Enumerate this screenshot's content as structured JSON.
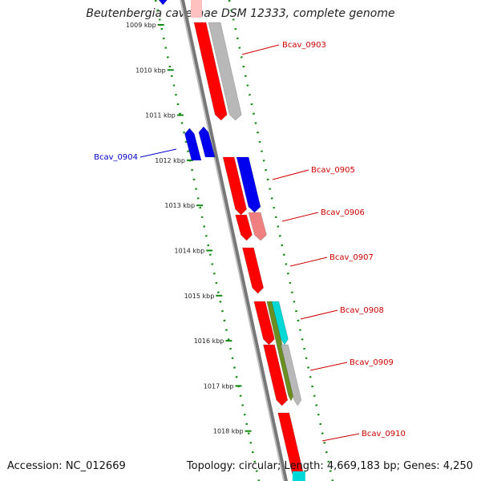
{
  "title": "Beutenbergia cavernae DSM 12333, complete genome",
  "accession": "Accession: NC_012669",
  "stats": "Topology: circular; Length: 4,669,183 bp; Genes: 4,250",
  "colors": {
    "dots": "#118811",
    "backbone": "#777777",
    "red": "#ff0000",
    "blue": "#0000ee",
    "pink": "#f08080",
    "gray": "#b8b8b8",
    "cyan": "#00d8d8",
    "olive": "#6b8e23",
    "label_red": "#cc0000",
    "label_blue": "#0000cc"
  },
  "ticks": [
    "1009 kbp",
    "1010 kbp",
    "1011 kbp",
    "1012 kbp",
    "1013 kbp",
    "1014 kbp",
    "1015 kbp",
    "1016 kbp",
    "1017 kbp",
    "1018 kbp"
  ],
  "gene_labels": [
    {
      "name": "Bcav_0903",
      "color": "label_red"
    },
    {
      "name": "Bcav_0904",
      "color": "label_blue"
    },
    {
      "name": "Bcav_0905",
      "color": "label_red"
    },
    {
      "name": "Bcav_0906",
      "color": "label_red"
    },
    {
      "name": "Bcav_0907",
      "color": "label_red"
    },
    {
      "name": "Bcav_0908",
      "color": "label_red"
    },
    {
      "name": "Bcav_0909",
      "color": "label_red"
    },
    {
      "name": "Bcav_0910",
      "color": "label_red"
    }
  ]
}
